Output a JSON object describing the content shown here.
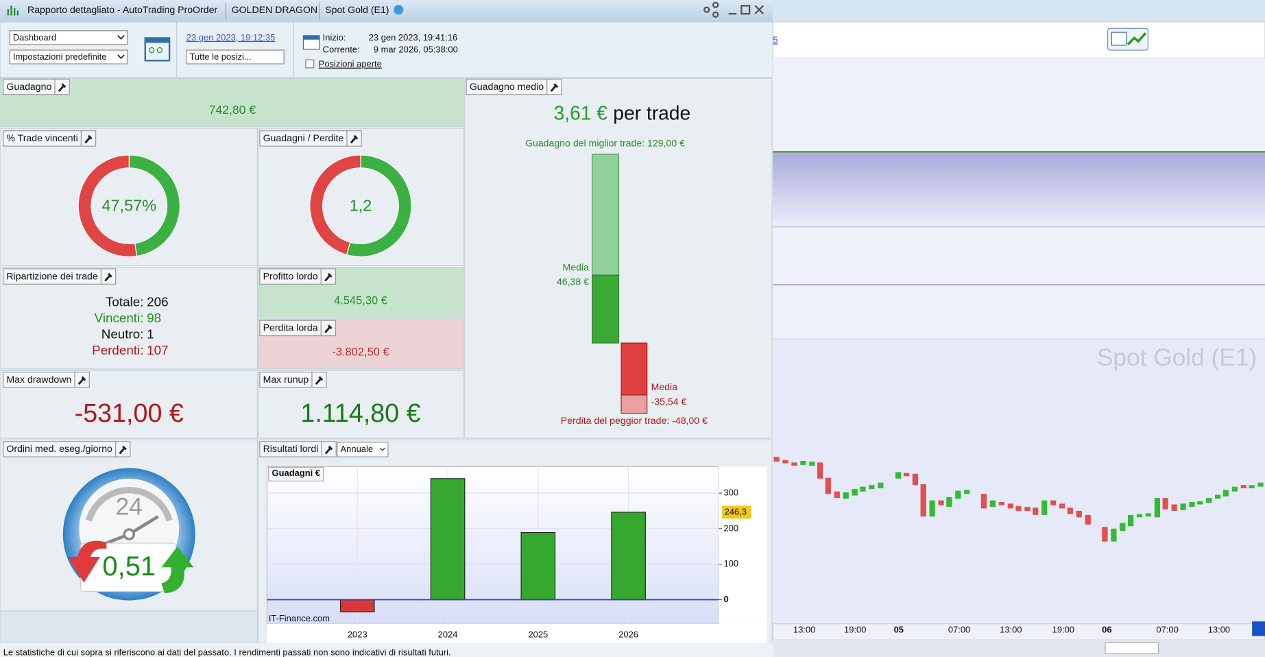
{
  "window": {
    "title": "Rapporto dettagliato - AutoTrading ProOrder",
    "strategy": "GOLDEN DRAGON",
    "instrument": "Spot Gold (E1)"
  },
  "toolbar": {
    "view": "Dashboard",
    "preset": "Impostazioni predefinite",
    "date_link": "23 gen 2023, 19:12:35",
    "positions_filter": "Tutte le posizi...",
    "start_label": "Inizio:",
    "start": "23 gen 2023, 19:41:16",
    "current_label": "Corrente:",
    "current": "9 mar 2026, 05:38:00",
    "open_positions": "Posizioni aperte"
  },
  "panels": {
    "profit": {
      "title": "Guadagno",
      "value": "742,80 €"
    },
    "win_rate": {
      "title": "% Trade vincenti"
    },
    "gain_loss": {
      "title": "Guadagni / Perdite"
    },
    "breakdown": {
      "title": "Ripartizione dei trade",
      "rows": [
        [
          "Totale:",
          "206"
        ],
        [
          "Vincenti:",
          "98"
        ],
        [
          "Neutro:",
          "1"
        ],
        [
          "Perdenti:",
          "107"
        ]
      ]
    },
    "gross_profit": {
      "title": "Profitto lordo",
      "value": "4.545,30 €"
    },
    "gross_loss": {
      "title": "Perdita lorda",
      "value": "-3.802,50 €"
    },
    "max_drawdown": {
      "title": "Max drawdown",
      "value": "-531,00 €"
    },
    "max_runup": {
      "title": "Max runup",
      "value": "1.114,80 €"
    },
    "orders": {
      "title": "Ordini med. eseg./giorno",
      "hours": "24",
      "value": "0,51"
    },
    "avg_gain": {
      "title": "Guadagno medio",
      "value": "3,61 €",
      "unit": "per trade"
    },
    "results": {
      "title": "Risultati lordi",
      "period": "Annuale"
    }
  },
  "chart_data": [
    {
      "type": "donut",
      "center_label": "47,57%",
      "values": [
        47.57,
        52.43
      ],
      "colors": [
        "#3cb043",
        "#e04545"
      ]
    },
    {
      "type": "donut",
      "center_label": "1,2",
      "values": [
        54.45,
        45.55
      ],
      "colors": [
        "#3cb043",
        "#e04545"
      ]
    },
    {
      "type": "trade-range",
      "max": 129,
      "max_label": "Guadagno del miglior trade: 129,00 €",
      "avg_win": 46.38,
      "avg_win_title": "Media",
      "avg_win_label": "46,38 €",
      "avg_loss": -35.54,
      "avg_loss_title": "Media",
      "avg_loss_label": "-35,54 €",
      "min": -48,
      "min_label": "Perdita del peggior trade: -48,00 €",
      "colors": [
        "#8fd19a",
        "#3aaa35",
        "#e04040",
        "#e8a0a0"
      ]
    },
    {
      "type": "bar",
      "title": "Guadagni €",
      "source": "IT-Finance.com",
      "categories": [
        "2023",
        "2024",
        "2025",
        "2026"
      ],
      "values": [
        -34,
        341,
        189,
        246.3
      ],
      "positive_color": "#36a82f",
      "negative_color": "#d83838",
      "ylim": [
        -68,
        375
      ],
      "yticks": [
        0,
        100,
        200,
        300
      ],
      "last_marker": {
        "value": 246.3,
        "label": "246,3"
      }
    }
  ],
  "price_chart": {
    "instrument": "Spot Gold (E1)",
    "link_fragment": "5",
    "time_labels": [
      "13:00",
      "19:00",
      "05",
      "07:00",
      "13:00",
      "19:00",
      "06",
      "07:00",
      "13:00"
    ]
  },
  "disclaimer": "Le statistiche di cui sopra si riferiscono ai dati del passato. I rendimenti passati non sono indicativi di risultati futuri."
}
